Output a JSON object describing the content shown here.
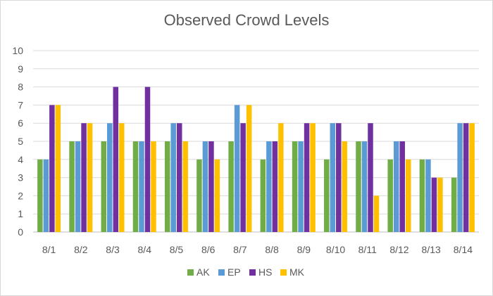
{
  "chart_data": {
    "type": "bar",
    "title": "Observed Crowd Levels",
    "xlabel": "",
    "ylabel": "",
    "ylim": [
      0,
      10
    ],
    "yticks": [
      0,
      1,
      2,
      3,
      4,
      5,
      6,
      7,
      8,
      9,
      10
    ],
    "grid": true,
    "legend_position": "bottom",
    "categories": [
      "8/1",
      "8/2",
      "8/3",
      "8/4",
      "8/5",
      "8/6",
      "8/7",
      "8/8",
      "8/9",
      "8/10",
      "8/11",
      "8/12",
      "8/13",
      "8/14"
    ],
    "series": [
      {
        "name": "AK",
        "color": "#70ad47",
        "values": [
          4,
          5,
          5,
          5,
          5,
          4,
          5,
          4,
          5,
          4,
          5,
          4,
          4,
          3
        ]
      },
      {
        "name": "EP",
        "color": "#5b9bd5",
        "values": [
          4,
          5,
          6,
          5,
          6,
          5,
          7,
          5,
          5,
          6,
          5,
          5,
          4,
          6
        ]
      },
      {
        "name": "HS",
        "color": "#7030a0",
        "values": [
          7,
          6,
          8,
          8,
          6,
          5,
          6,
          5,
          6,
          6,
          6,
          5,
          3,
          6
        ]
      },
      {
        "name": "MK",
        "color": "#ffc000",
        "values": [
          7,
          6,
          6,
          5,
          5,
          4,
          7,
          6,
          6,
          5,
          2,
          4,
          3,
          6
        ]
      }
    ]
  }
}
